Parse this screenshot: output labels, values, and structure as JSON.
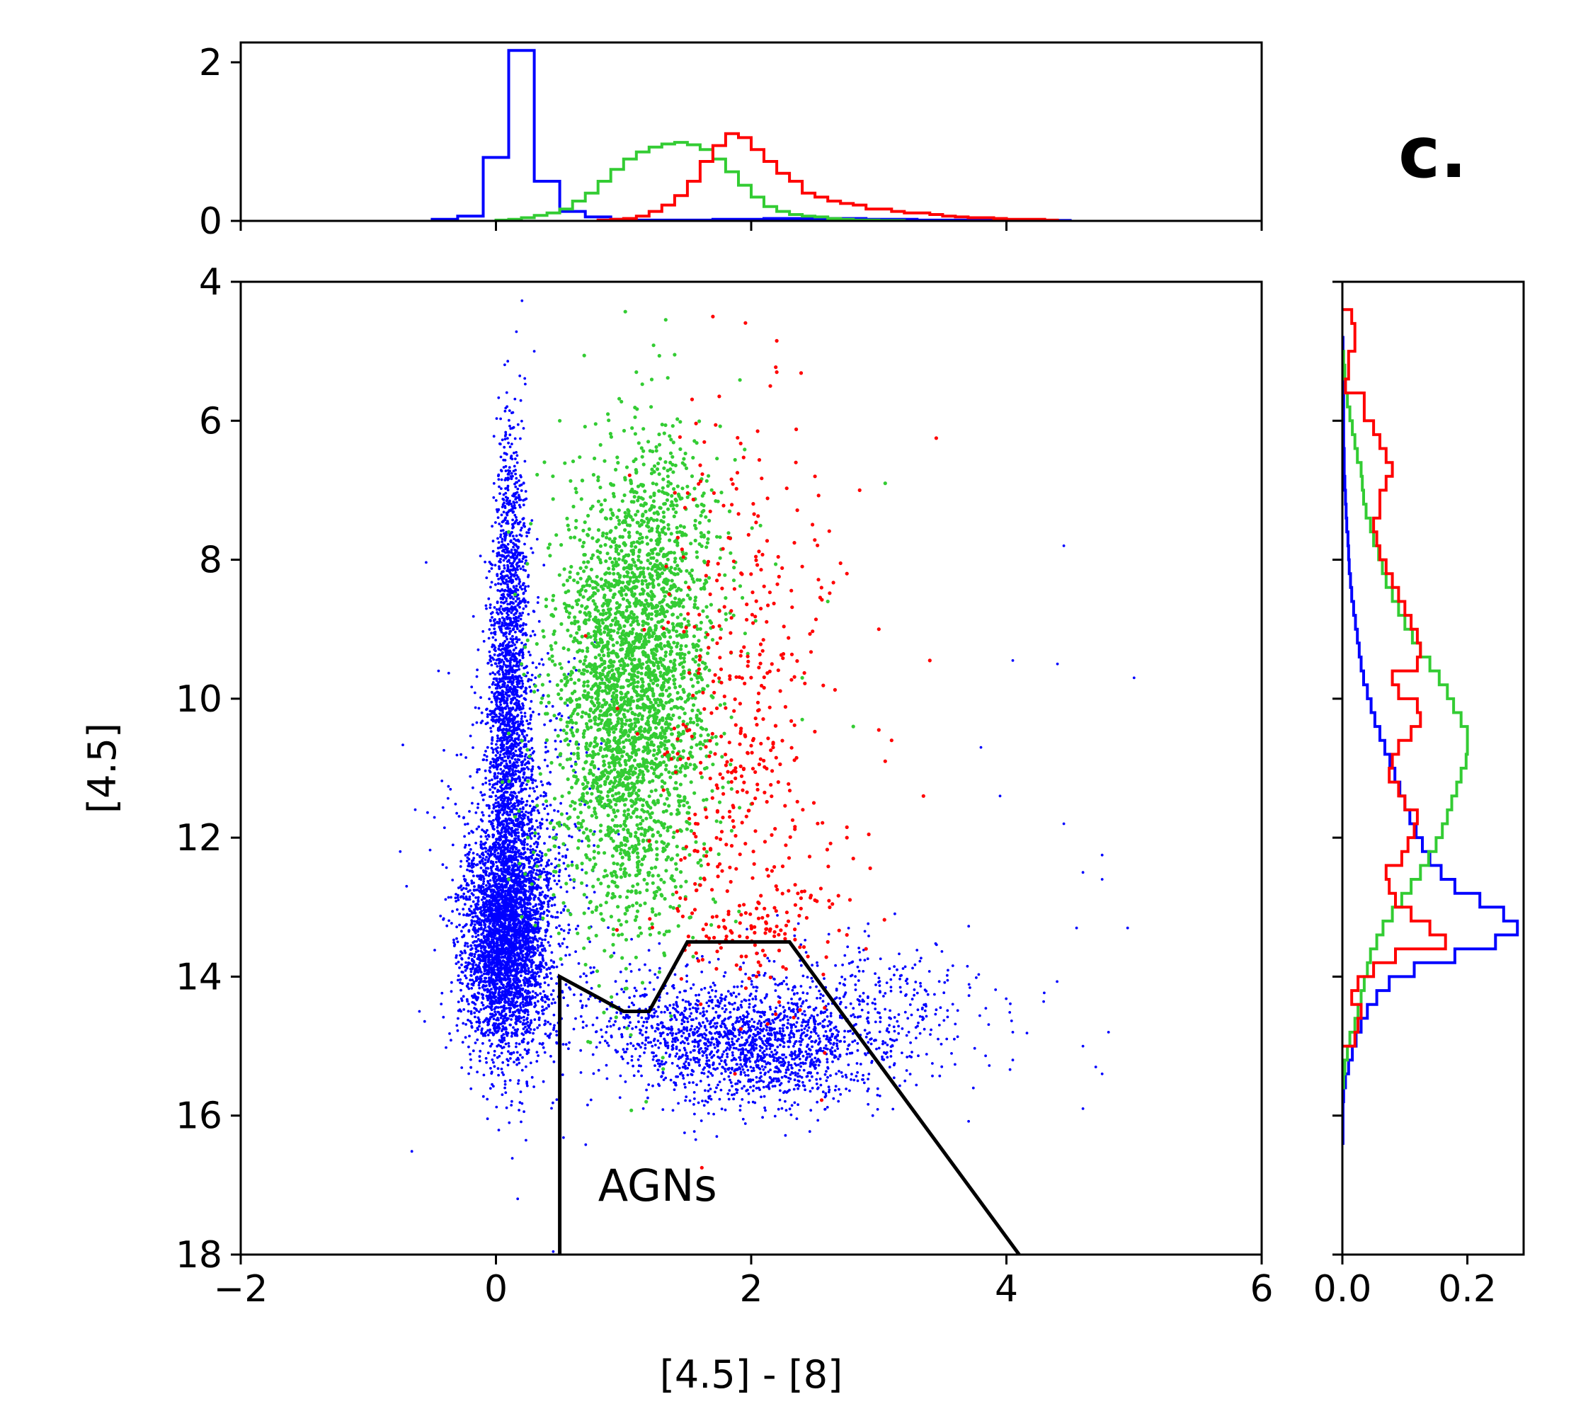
{
  "panel_label": "c.",
  "colors": {
    "blue": "#0000ff",
    "green": "#33cc33",
    "red": "#ff0000",
    "boundary": "#000000"
  },
  "chart_data": {
    "type": "scatter",
    "title": "",
    "xlabel": "[4.5] - [8]",
    "ylabel": "[4.5]",
    "xlim": [
      -2,
      6
    ],
    "ylim": [
      18,
      4
    ],
    "x_ticks": [
      -2,
      0,
      2,
      4,
      6
    ],
    "x_tick_labels": [
      "−2",
      "0",
      "2",
      "4",
      "6"
    ],
    "y_ticks": [
      4,
      6,
      8,
      10,
      12,
      14,
      16,
      18
    ],
    "y_tick_labels": [
      "4",
      "6",
      "8",
      "10",
      "12",
      "14",
      "16",
      "18"
    ],
    "grid": false,
    "legend": "none",
    "region": {
      "label": "AGNs",
      "label_position": [
        0.8,
        17.0
      ],
      "boundary": [
        [
          0.5,
          18
        ],
        [
          0.5,
          14
        ],
        [
          1.0,
          14.5
        ],
        [
          1.2,
          14.5
        ],
        [
          1.5,
          13.5
        ],
        [
          2.3,
          13.5
        ],
        [
          4.1,
          18
        ]
      ]
    },
    "series": [
      {
        "name": "blue",
        "color": "#0000ff",
        "clusters": [
          {
            "cx": 0.08,
            "cy": 13.4,
            "sx": 0.16,
            "sy": 0.85,
            "n": 3500
          },
          {
            "cx": 0.1,
            "cy": 10.2,
            "sx": 0.08,
            "sy": 1.4,
            "n": 1600
          },
          {
            "cx": 0.12,
            "cy": 7.6,
            "sx": 0.06,
            "sy": 0.9,
            "n": 350
          },
          {
            "cx": 0.2,
            "cy": 12.2,
            "sx": 0.28,
            "sy": 1.6,
            "n": 700
          },
          {
            "cx": 1.95,
            "cy": 15.0,
            "sx": 0.42,
            "sy": 0.42,
            "n": 1300
          },
          {
            "cx": 2.8,
            "cy": 14.6,
            "sx": 0.55,
            "sy": 0.55,
            "n": 500
          },
          {
            "cx": 1.2,
            "cy": 14.6,
            "sx": 0.3,
            "sy": 0.35,
            "n": 250
          }
        ],
        "outliers": [
          [
            -0.75,
            12.2
          ],
          [
            -0.7,
            12.7
          ],
          [
            -0.6,
            14.5
          ],
          [
            -0.45,
            9.6
          ],
          [
            0.3,
            5.0
          ],
          [
            4.45,
            7.8
          ],
          [
            4.05,
            9.45
          ],
          [
            4.4,
            9.5
          ],
          [
            5.0,
            9.7
          ],
          [
            4.45,
            11.8
          ],
          [
            4.75,
            12.25
          ],
          [
            4.6,
            12.5
          ],
          [
            4.75,
            12.6
          ],
          [
            4.55,
            13.3
          ],
          [
            4.95,
            13.3
          ],
          [
            4.05,
            14.8
          ],
          [
            4.05,
            15.2
          ],
          [
            4.8,
            14.8
          ],
          [
            4.6,
            15.0
          ],
          [
            4.7,
            15.3
          ],
          [
            4.75,
            15.4
          ],
          [
            4.6,
            15.9
          ],
          [
            3.95,
            11.4
          ],
          [
            3.8,
            10.7
          ]
        ],
        "hist_x": {
          "edges_start": -0.5,
          "bin": 0.2,
          "values": [
            0.02,
            0.06,
            0.8,
            2.15,
            0.5,
            0.12,
            0.05,
            0.02,
            0.01,
            0.01,
            0.01,
            0.02,
            0.02,
            0.03,
            0.03,
            0.03,
            0.03,
            0.02,
            0.02,
            0.01,
            0.01,
            0.01,
            0.01,
            0.005,
            0.005
          ]
        },
        "hist_y": {
          "edges_start": 4.8,
          "bin": 0.2,
          "values": [
            0.001,
            0.001,
            0.001,
            0.001,
            0.002,
            0.002,
            0.002,
            0.002,
            0.003,
            0.003,
            0.004,
            0.005,
            0.006,
            0.007,
            0.009,
            0.01,
            0.011,
            0.013,
            0.015,
            0.018,
            0.021,
            0.024,
            0.027,
            0.03,
            0.034,
            0.04,
            0.046,
            0.052,
            0.06,
            0.068,
            0.076,
            0.084,
            0.092,
            0.1,
            0.108,
            0.118,
            0.128,
            0.14,
            0.158,
            0.18,
            0.22,
            0.258,
            0.28,
            0.245,
            0.18,
            0.115,
            0.075,
            0.055,
            0.04,
            0.03,
            0.022,
            0.016,
            0.01,
            0.005,
            0.002,
            0.001,
            0.001,
            0.001
          ]
        }
      },
      {
        "name": "green",
        "color": "#33cc33",
        "clusters": [
          {
            "cx": 1.05,
            "cy": 10.2,
            "sx": 0.3,
            "sy": 1.5,
            "n": 2600
          },
          {
            "cx": 1.25,
            "cy": 7.8,
            "sx": 0.3,
            "sy": 1.0,
            "n": 500
          }
        ],
        "outliers": [
          [
            0.5,
            6.0
          ],
          [
            1.1,
            5.3
          ],
          [
            1.4,
            5.05
          ],
          [
            0.1,
            7.6
          ],
          [
            0.15,
            8.5
          ],
          [
            0.2,
            9.5
          ],
          [
            0.1,
            10.5
          ],
          [
            0.05,
            11.2
          ],
          [
            0.15,
            11.7
          ],
          [
            0.1,
            12.6
          ],
          [
            0.25,
            12.0
          ],
          [
            0.3,
            9.9
          ],
          [
            2.4,
            10.3
          ],
          [
            2.4,
            9.7
          ],
          [
            2.6,
            8.6
          ],
          [
            2.8,
            10.4
          ],
          [
            3.05,
            6.9
          ]
        ],
        "hist_x": {
          "edges_start": 0.0,
          "bin": 0.1,
          "values": [
            0.01,
            0.02,
            0.04,
            0.07,
            0.1,
            0.15,
            0.25,
            0.35,
            0.5,
            0.65,
            0.78,
            0.87,
            0.93,
            0.97,
            0.99,
            0.96,
            0.9,
            0.78,
            0.62,
            0.45,
            0.3,
            0.18,
            0.12,
            0.08,
            0.06,
            0.05,
            0.03,
            0.02,
            0.01,
            0.01,
            0.005,
            0.005
          ]
        },
        "hist_y": {
          "edges_start": 5.0,
          "bin": 0.2,
          "values": [
            0.002,
            0.004,
            0.005,
            0.008,
            0.012,
            0.016,
            0.02,
            0.024,
            0.03,
            0.032,
            0.034,
            0.038,
            0.045,
            0.05,
            0.058,
            0.064,
            0.07,
            0.08,
            0.09,
            0.1,
            0.112,
            0.125,
            0.14,
            0.155,
            0.168,
            0.178,
            0.19,
            0.2,
            0.2,
            0.198,
            0.19,
            0.183,
            0.175,
            0.168,
            0.16,
            0.15,
            0.138,
            0.125,
            0.11,
            0.095,
            0.08,
            0.065,
            0.055,
            0.045,
            0.04,
            0.035,
            0.03,
            0.025,
            0.02,
            0.012,
            0.008,
            0.004,
            0.002
          ]
        }
      },
      {
        "name": "red",
        "color": "#ff0000",
        "clusters": [
          {
            "cx": 1.95,
            "cy": 10.2,
            "sx": 0.32,
            "sy": 2.0,
            "n": 420
          },
          {
            "cx": 2.05,
            "cy": 13.2,
            "sx": 0.35,
            "sy": 0.45,
            "n": 110
          }
        ],
        "outliers": [
          [
            1.7,
            4.5
          ],
          [
            2.2,
            4.85
          ],
          [
            2.2,
            5.3
          ],
          [
            1.75,
            5.65
          ],
          [
            2.15,
            5.5
          ],
          [
            3.45,
            6.25
          ],
          [
            2.35,
            6.6
          ],
          [
            2.5,
            6.8
          ],
          [
            2.85,
            7.0
          ],
          [
            2.7,
            8.05
          ],
          [
            2.75,
            8.2
          ],
          [
            3.0,
            9.0
          ],
          [
            3.4,
            9.45
          ],
          [
            3.0,
            10.45
          ],
          [
            3.1,
            10.6
          ],
          [
            3.05,
            10.9
          ],
          [
            3.35,
            11.4
          ],
          [
            2.75,
            11.85
          ],
          [
            2.75,
            12.0
          ],
          [
            2.8,
            12.3
          ],
          [
            2.75,
            13.4
          ],
          [
            2.9,
            13.6
          ],
          [
            2.6,
            13.5
          ],
          [
            2.5,
            12.9
          ]
        ],
        "hist_x": {
          "edges_start": 0.8,
          "bin": 0.1,
          "values": [
            0.01,
            0.02,
            0.03,
            0.06,
            0.12,
            0.2,
            0.32,
            0.5,
            0.75,
            0.95,
            1.1,
            1.05,
            0.9,
            0.75,
            0.6,
            0.5,
            0.35,
            0.3,
            0.25,
            0.22,
            0.2,
            0.15,
            0.15,
            0.12,
            0.1,
            0.1,
            0.08,
            0.06,
            0.05,
            0.04,
            0.04,
            0.03,
            0.02,
            0.02,
            0.02,
            0.01
          ]
        },
        "hist_y": {
          "edges_start": 4.4,
          "bin": 0.2,
          "values": [
            0.015,
            0.02,
            0.02,
            0.01,
            0.01,
            0.005,
            0.035,
            0.035,
            0.05,
            0.06,
            0.07,
            0.08,
            0.07,
            0.06,
            0.06,
            0.05,
            0.055,
            0.06,
            0.07,
            0.08,
            0.09,
            0.1,
            0.11,
            0.12,
            0.125,
            0.12,
            0.08,
            0.09,
            0.12,
            0.125,
            0.11,
            0.09,
            0.08,
            0.075,
            0.09,
            0.1,
            0.12,
            0.115,
            0.105,
            0.095,
            0.07,
            0.075,
            0.085,
            0.11,
            0.14,
            0.165,
            0.085,
            0.05,
            0.025,
            0.015,
            0.03,
            0.025,
            0.02
          ]
        }
      }
    ],
    "top_histogram": {
      "ylim": [
        0,
        2.25
      ],
      "y_ticks": [
        0,
        2
      ],
      "y_tick_labels": [
        "0",
        "2"
      ]
    },
    "right_histogram": {
      "xlim": [
        0,
        0.29
      ],
      "x_ticks": [
        0.0,
        0.2
      ],
      "x_tick_labels": [
        "0.0",
        "0.2"
      ]
    }
  }
}
